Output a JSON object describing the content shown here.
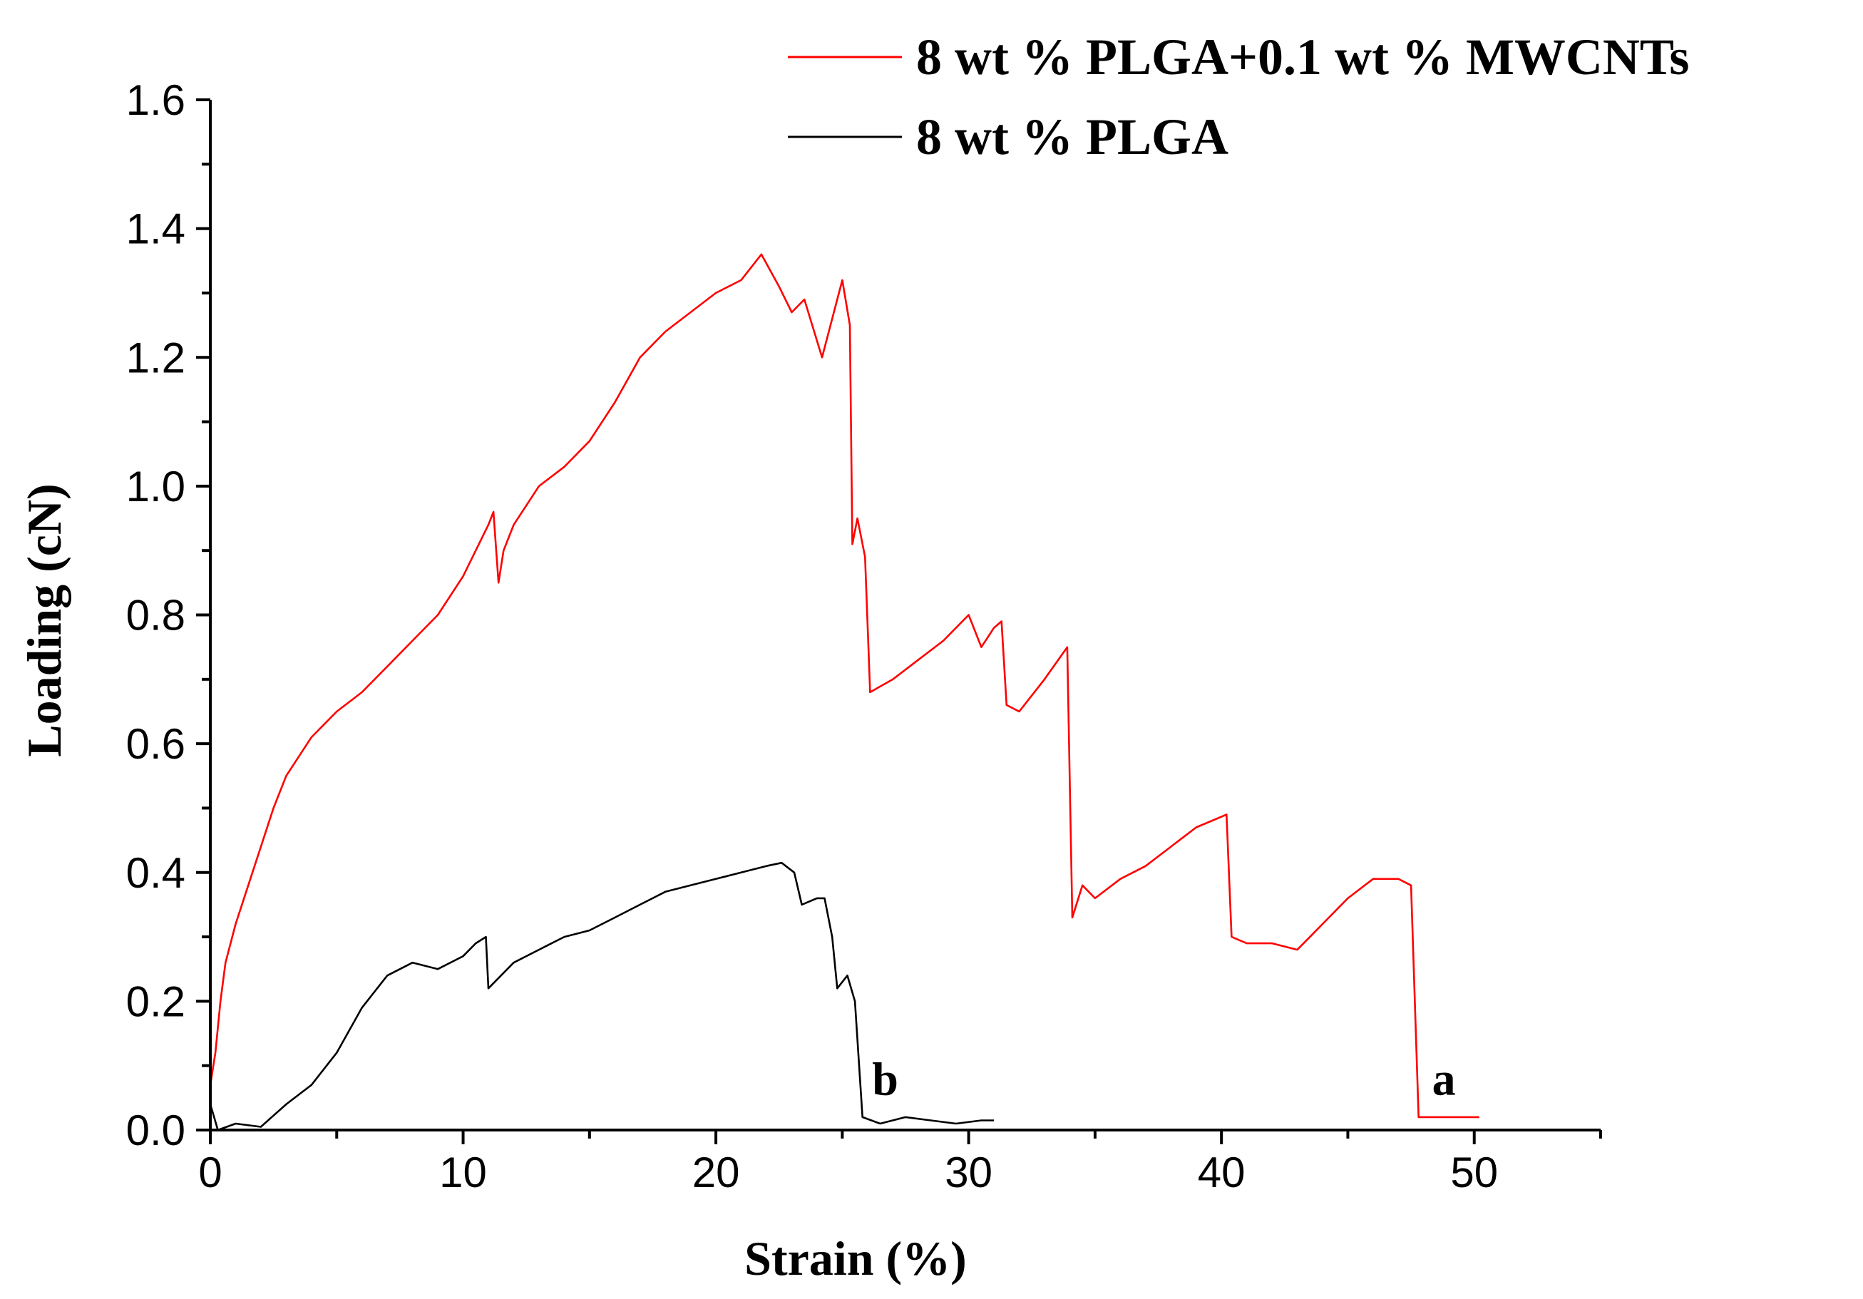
{
  "chart_data": {
    "type": "line",
    "title": "",
    "xlabel": "Strain (%)",
    "ylabel": "Loading (cN)",
    "xlim": [
      0,
      55
    ],
    "ylim": [
      0,
      1.6
    ],
    "x_ticks": [
      0,
      10,
      20,
      30,
      40,
      50
    ],
    "x_tick_labels": [
      "0",
      "10",
      "20",
      "30",
      "40",
      "50"
    ],
    "y_ticks": [
      0,
      0.2,
      0.4,
      0.6,
      0.8,
      1.0,
      1.2,
      1.4,
      1.6
    ],
    "y_tick_labels": [
      "0.0",
      "0.2",
      "0.4",
      "0.6",
      "0.8",
      "1.0",
      "1.2",
      "1.4",
      "1.6"
    ],
    "grid": false,
    "legend_position": "top-right",
    "series": [
      {
        "name": "8 wt % PLGA+0.1 wt % MWCNTs",
        "color": "#ff0000",
        "points": [
          [
            0,
            0.07
          ],
          [
            0.2,
            0.12
          ],
          [
            0.4,
            0.2
          ],
          [
            0.6,
            0.26
          ],
          [
            1.0,
            0.32
          ],
          [
            1.5,
            0.38
          ],
          [
            2.0,
            0.44
          ],
          [
            2.5,
            0.5
          ],
          [
            3.0,
            0.55
          ],
          [
            3.5,
            0.58
          ],
          [
            4.0,
            0.61
          ],
          [
            5.0,
            0.65
          ],
          [
            6.0,
            0.68
          ],
          [
            7.0,
            0.72
          ],
          [
            8.0,
            0.76
          ],
          [
            9.0,
            0.8
          ],
          [
            10.0,
            0.86
          ],
          [
            11.0,
            0.94
          ],
          [
            11.2,
            0.96
          ],
          [
            11.4,
            0.85
          ],
          [
            11.6,
            0.9
          ],
          [
            12.0,
            0.94
          ],
          [
            13.0,
            1.0
          ],
          [
            14.0,
            1.03
          ],
          [
            15.0,
            1.07
          ],
          [
            16.0,
            1.13
          ],
          [
            17.0,
            1.2
          ],
          [
            18.0,
            1.24
          ],
          [
            19.0,
            1.27
          ],
          [
            20.0,
            1.3
          ],
          [
            21.0,
            1.32
          ],
          [
            21.8,
            1.36
          ],
          [
            22.5,
            1.31
          ],
          [
            23.0,
            1.27
          ],
          [
            23.5,
            1.29
          ],
          [
            24.2,
            1.2
          ],
          [
            24.8,
            1.29
          ],
          [
            25.0,
            1.32
          ],
          [
            25.3,
            1.25
          ],
          [
            25.4,
            0.91
          ],
          [
            25.6,
            0.95
          ],
          [
            25.9,
            0.89
          ],
          [
            26.1,
            0.68
          ],
          [
            27.0,
            0.7
          ],
          [
            28.0,
            0.73
          ],
          [
            29.0,
            0.76
          ],
          [
            30.0,
            0.8
          ],
          [
            30.5,
            0.75
          ],
          [
            31.0,
            0.78
          ],
          [
            31.3,
            0.79
          ],
          [
            31.5,
            0.66
          ],
          [
            32.0,
            0.65
          ],
          [
            33.0,
            0.7
          ],
          [
            33.9,
            0.75
          ],
          [
            34.1,
            0.33
          ],
          [
            34.5,
            0.38
          ],
          [
            35.0,
            0.36
          ],
          [
            36.0,
            0.39
          ],
          [
            37.0,
            0.41
          ],
          [
            38.0,
            0.44
          ],
          [
            39.0,
            0.47
          ],
          [
            40.2,
            0.49
          ],
          [
            40.4,
            0.3
          ],
          [
            41.0,
            0.29
          ],
          [
            42.0,
            0.29
          ],
          [
            43.0,
            0.28
          ],
          [
            43.5,
            0.3
          ],
          [
            44.0,
            0.32
          ],
          [
            45.0,
            0.36
          ],
          [
            46.0,
            0.39
          ],
          [
            47.0,
            0.39
          ],
          [
            47.5,
            0.38
          ],
          [
            47.8,
            0.02
          ],
          [
            48.5,
            0.02
          ],
          [
            49.5,
            0.02
          ],
          [
            50.2,
            0.02
          ]
        ]
      },
      {
        "name": "8 wt % PLGA",
        "color": "#000000",
        "points": [
          [
            0,
            0.04
          ],
          [
            0.3,
            0.0
          ],
          [
            1.0,
            0.01
          ],
          [
            2.0,
            0.005
          ],
          [
            3.0,
            0.04
          ],
          [
            4.0,
            0.07
          ],
          [
            5.0,
            0.12
          ],
          [
            6.0,
            0.19
          ],
          [
            7.0,
            0.24
          ],
          [
            8.0,
            0.26
          ],
          [
            9.0,
            0.25
          ],
          [
            10.0,
            0.27
          ],
          [
            10.5,
            0.29
          ],
          [
            10.9,
            0.3
          ],
          [
            11.0,
            0.22
          ],
          [
            12.0,
            0.26
          ],
          [
            13.0,
            0.28
          ],
          [
            14.0,
            0.3
          ],
          [
            15.0,
            0.31
          ],
          [
            16.0,
            0.33
          ],
          [
            17.0,
            0.35
          ],
          [
            18.0,
            0.37
          ],
          [
            19.0,
            0.38
          ],
          [
            20.0,
            0.39
          ],
          [
            21.0,
            0.4
          ],
          [
            22.0,
            0.41
          ],
          [
            22.6,
            0.415
          ],
          [
            23.1,
            0.4
          ],
          [
            23.4,
            0.35
          ],
          [
            24.0,
            0.36
          ],
          [
            24.3,
            0.36
          ],
          [
            24.6,
            0.3
          ],
          [
            24.8,
            0.22
          ],
          [
            25.2,
            0.24
          ],
          [
            25.5,
            0.2
          ],
          [
            25.8,
            0.02
          ],
          [
            26.5,
            0.01
          ],
          [
            27.5,
            0.02
          ],
          [
            28.5,
            0.015
          ],
          [
            29.5,
            0.01
          ],
          [
            30.5,
            0.015
          ],
          [
            31.0,
            0.015
          ]
        ]
      }
    ],
    "annotations": [
      {
        "text": "a",
        "x": 48.8,
        "y": 0.055
      },
      {
        "text": "b",
        "x": 26.7,
        "y": 0.055
      }
    ]
  }
}
